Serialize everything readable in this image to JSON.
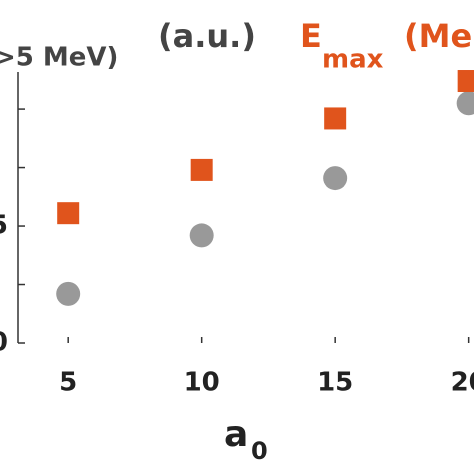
{
  "chart_data": {
    "type": "scatter",
    "annotations": {
      "left_label": ">5 MeV)",
      "units": "(a.u.)",
      "emax_e": "E",
      "emax_sub": "max",
      "emax_unit": "(Me"
    },
    "x_label": "a",
    "x_label_sub": "0",
    "xlim": [
      3.12,
      20.2
    ],
    "xticks": [
      5,
      10,
      15,
      20
    ],
    "ylim": [
      0,
      11.5
    ],
    "yticks": [
      0,
      5
    ],
    "yminor": [
      2.5,
      7.5,
      10
    ],
    "series": [
      {
        "marker": "circle",
        "color": "#999999",
        "x": [
          5,
          10,
          15,
          20
        ],
        "values": [
          2.1,
          4.6,
          7.05,
          10.25
        ]
      },
      {
        "marker": "square",
        "color": "#e0541c",
        "x": [
          5,
          10,
          15,
          20
        ],
        "values": [
          5.55,
          7.4,
          9.6,
          11.2
        ]
      }
    ]
  }
}
